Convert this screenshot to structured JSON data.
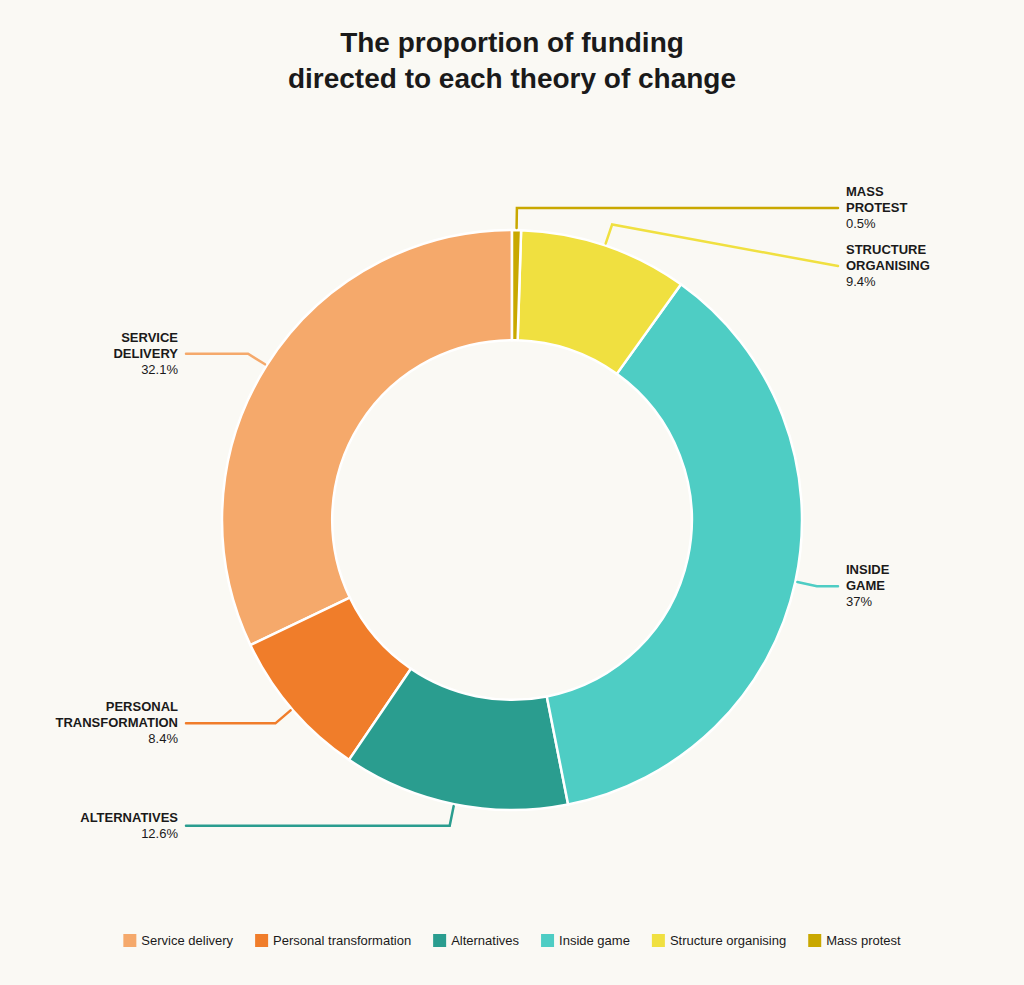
{
  "chart_data": {
    "type": "donut",
    "title": "The proportion of funding\ndirected to each theory of change",
    "categories": [
      "Service delivery",
      "Personal transformation",
      "Alternatives",
      "Inside game",
      "Structure organising",
      "Mass protest"
    ],
    "values": [
      32.1,
      8.4,
      12.6,
      37.0,
      9.4,
      0.5
    ],
    "colors": [
      "#f5a96b",
      "#f07d2a",
      "#2a9d8f",
      "#4ecdc4",
      "#f0e040",
      "#c9a800"
    ],
    "data_labels": true,
    "value_labels": [
      "32.1%",
      "8.4%",
      "12.6%",
      "37%",
      "9.4%",
      "0.5%"
    ],
    "annotations": [
      "SERVICE\nDELIVERY",
      "PERSONAL\nTRANSFORMATION",
      "ALTERNATIVES",
      "INSIDE\nGAME",
      "STRUCTURE\nORGANISING",
      "MASS\nPROTEST"
    ],
    "legend": "bottom"
  }
}
